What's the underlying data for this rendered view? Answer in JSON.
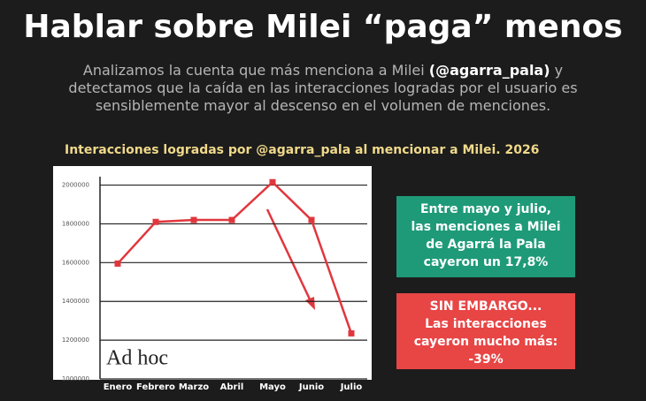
{
  "header": {
    "title": "Hablar sobre Milei “paga” menos",
    "subtitle": [
      "Analizamos la cuenta que más menciona a Milei ",
      "(@agarra_pala)",
      " y detectamos que la caída en las interacciones logradas por el usuario es sensiblemente mayor al descenso en el volumen de menciones."
    ]
  },
  "chart_data": {
    "type": "line",
    "title": "Interacciones logradas por @agarra_pala al mencionar a Milei. 2026",
    "categories": [
      "Enero",
      "Febrero",
      "Marzo",
      "Abril",
      "Mayo",
      "Junio",
      "Julio"
    ],
    "values": [
      1595000,
      1810000,
      1820000,
      1820000,
      2015000,
      1820000,
      1235000
    ],
    "color": "#e0373d",
    "ylim": [
      1000000,
      2080000
    ],
    "yticks": [
      1000000,
      1200000,
      1400000,
      1600000,
      1800000,
      2000000
    ],
    "grid": true,
    "logo": "Ad hoc",
    "annotations": [
      {
        "lines": [
          "Entre mayo y julio,",
          "las menciones a Milei",
          "de Agarrá la Pala",
          "cayeron un 17,8%"
        ],
        "color": "#1e9a78"
      },
      {
        "lines": [
          "SIN EMBARGO...",
          "Las interacciones",
          "cayeron mucho más:",
          "-39%"
        ],
        "color": "#e84545"
      }
    ]
  }
}
